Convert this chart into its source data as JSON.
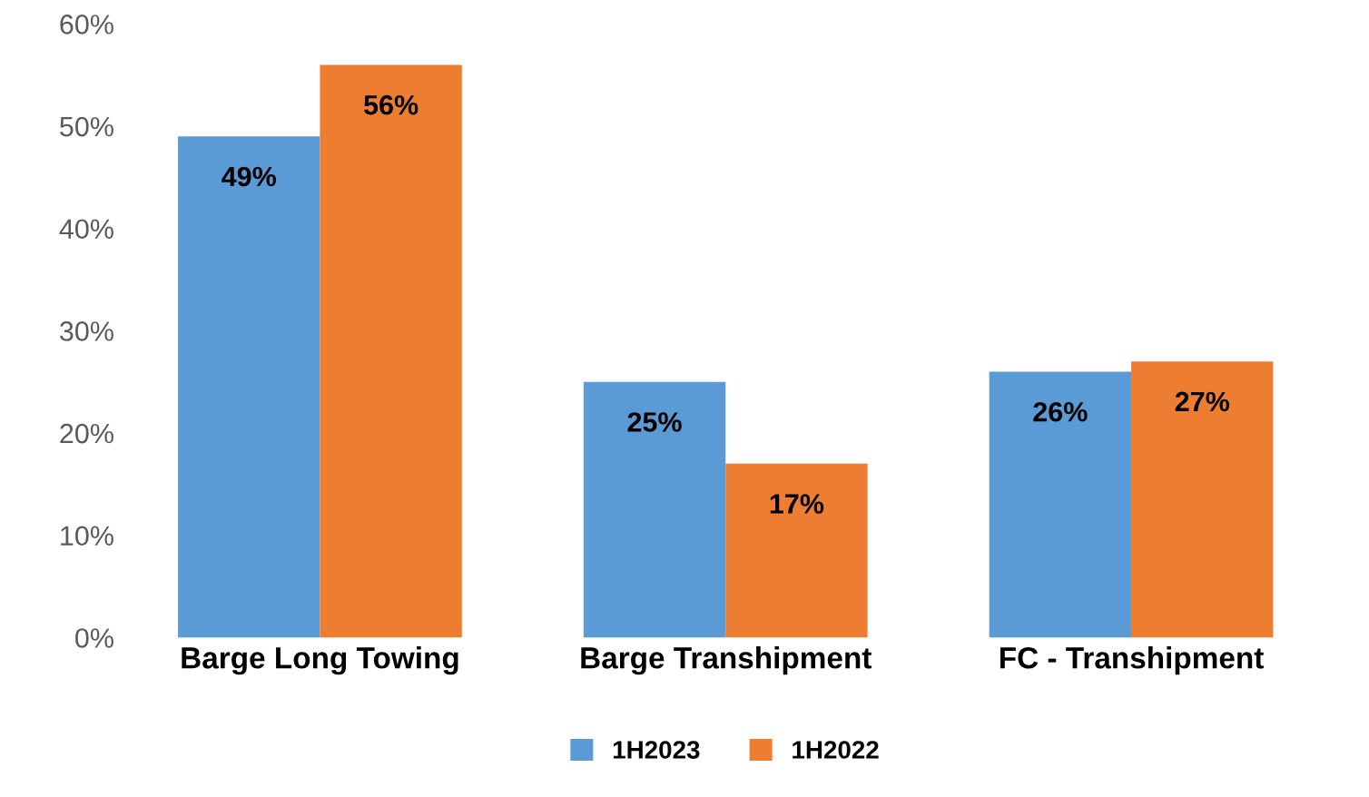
{
  "chart_data": {
    "type": "bar",
    "categories": [
      "Barge Long Towing",
      "Barge Transhipment",
      "FC - Transhipment"
    ],
    "series": [
      {
        "name": "1H2023",
        "color": "#5b9bd5",
        "values": [
          49,
          25,
          26
        ],
        "value_labels": [
          "49%",
          "25%",
          "26%"
        ]
      },
      {
        "name": "1H2022",
        "color": "#ed7d31",
        "values": [
          56,
          17,
          27
        ],
        "value_labels": [
          "56%",
          "17%",
          "27%"
        ]
      }
    ],
    "ylim": [
      0,
      60
    ],
    "yticks": [
      {
        "value": 0,
        "label": "0%"
      },
      {
        "value": 10,
        "label": "10%"
      },
      {
        "value": 20,
        "label": "20%"
      },
      {
        "value": 30,
        "label": "30%"
      },
      {
        "value": 40,
        "label": "40%"
      },
      {
        "value": 50,
        "label": "50%"
      },
      {
        "value": 60,
        "label": "60%"
      }
    ],
    "grid": false,
    "legend": "bottom"
  }
}
